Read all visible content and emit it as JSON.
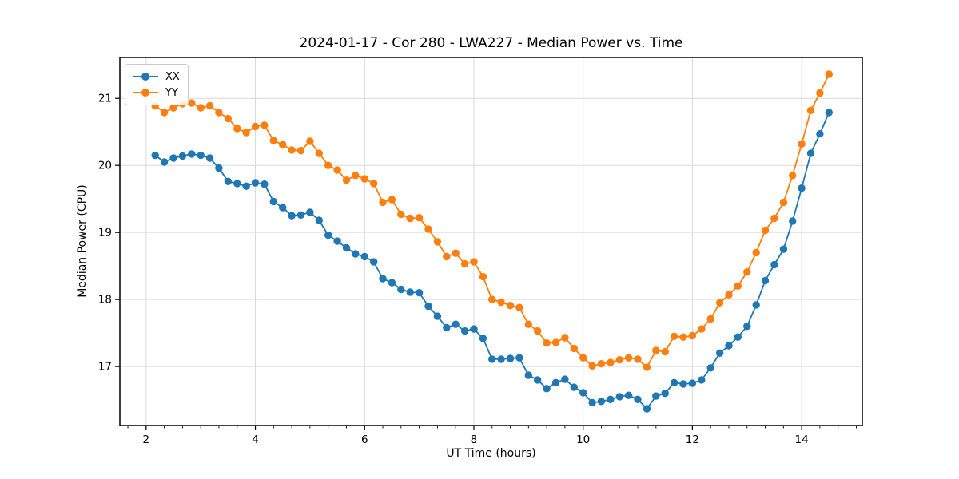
{
  "title": "2024-01-17 - Cor 280 - LWA227 - Median Power vs. Time",
  "legend": {
    "items": [
      {
        "label": "XX",
        "color": "#1f77b4"
      },
      {
        "label": "YY",
        "color": "#ff7f0e"
      }
    ]
  },
  "colors": {
    "grid": "#d9d9d9",
    "spine": "#000000",
    "background": "#ffffff"
  },
  "chart_data": {
    "type": "line",
    "title": "2024-01-17 - Cor 280 - LWA227 - Median Power vs. Time",
    "xlabel": "UT Time (hours)",
    "ylabel": "Median Power (CPU)",
    "xlim": [
      1.52,
      15.11
    ],
    "ylim": [
      16.12,
      21.61
    ],
    "xticks": [
      2,
      4,
      6,
      8,
      10,
      12,
      14
    ],
    "x_minor_step": 0.33333,
    "yticks": [
      17,
      18,
      19,
      20,
      21
    ],
    "grid": true,
    "legend_position": "upper left",
    "marker": "circle",
    "x": [
      2.167,
      2.333,
      2.5,
      2.667,
      2.833,
      3.0,
      3.167,
      3.333,
      3.5,
      3.667,
      3.833,
      4.0,
      4.167,
      4.333,
      4.5,
      4.667,
      4.833,
      5.0,
      5.167,
      5.333,
      5.5,
      5.667,
      5.833,
      6.0,
      6.167,
      6.333,
      6.5,
      6.667,
      6.833,
      7.0,
      7.167,
      7.333,
      7.5,
      7.667,
      7.833,
      8.0,
      8.167,
      8.333,
      8.5,
      8.667,
      8.833,
      9.0,
      9.167,
      9.333,
      9.5,
      9.667,
      9.833,
      10.0,
      10.167,
      10.333,
      10.5,
      10.667,
      10.833,
      11.0,
      11.167,
      11.333,
      11.5,
      11.667,
      11.833,
      12.0,
      12.167,
      12.333,
      12.5,
      12.667,
      12.833,
      13.0,
      13.167,
      13.333,
      13.5,
      13.667,
      13.833,
      14.0,
      14.167,
      14.333,
      14.5
    ],
    "series": [
      {
        "name": "XX",
        "color": "#1f77b4",
        "values": [
          20.15,
          20.05,
          20.11,
          20.14,
          20.17,
          20.15,
          20.11,
          19.96,
          19.76,
          19.73,
          19.69,
          19.74,
          19.72,
          19.46,
          19.37,
          19.25,
          19.26,
          19.3,
          19.18,
          18.96,
          18.87,
          18.77,
          18.68,
          18.64,
          18.56,
          18.31,
          18.25,
          18.15,
          18.11,
          18.1,
          17.9,
          17.75,
          17.58,
          17.63,
          17.53,
          17.56,
          17.42,
          17.11,
          17.11,
          17.12,
          17.13,
          16.87,
          16.8,
          16.67,
          16.76,
          16.81,
          16.69,
          16.61,
          16.46,
          16.48,
          16.51,
          16.55,
          16.57,
          16.51,
          16.37,
          16.56,
          16.6,
          16.76,
          16.74,
          16.75,
          16.8,
          16.98,
          17.2,
          17.31,
          17.44,
          17.6,
          17.92,
          18.28,
          18.52,
          18.75,
          19.17,
          19.66,
          20.18,
          20.47,
          20.79
        ]
      },
      {
        "name": "YY",
        "color": "#ff7f0e",
        "values": [
          20.89,
          20.79,
          20.86,
          20.92,
          20.93,
          20.86,
          20.89,
          20.79,
          20.7,
          20.55,
          20.49,
          20.58,
          20.6,
          20.37,
          20.31,
          20.23,
          20.22,
          20.36,
          20.18,
          20.0,
          19.93,
          19.78,
          19.85,
          19.8,
          19.73,
          19.45,
          19.49,
          19.27,
          19.21,
          19.22,
          19.05,
          18.86,
          18.64,
          18.69,
          18.53,
          18.56,
          18.34,
          18.0,
          17.96,
          17.91,
          17.88,
          17.63,
          17.53,
          17.35,
          17.36,
          17.43,
          17.27,
          17.13,
          17.01,
          17.04,
          17.06,
          17.1,
          17.13,
          17.11,
          16.99,
          17.24,
          17.22,
          17.45,
          17.44,
          17.46,
          17.56,
          17.71,
          17.95,
          18.07,
          18.2,
          18.41,
          18.7,
          19.03,
          19.21,
          19.45,
          19.85,
          20.32,
          20.82,
          21.08,
          21.36
        ]
      }
    ]
  }
}
